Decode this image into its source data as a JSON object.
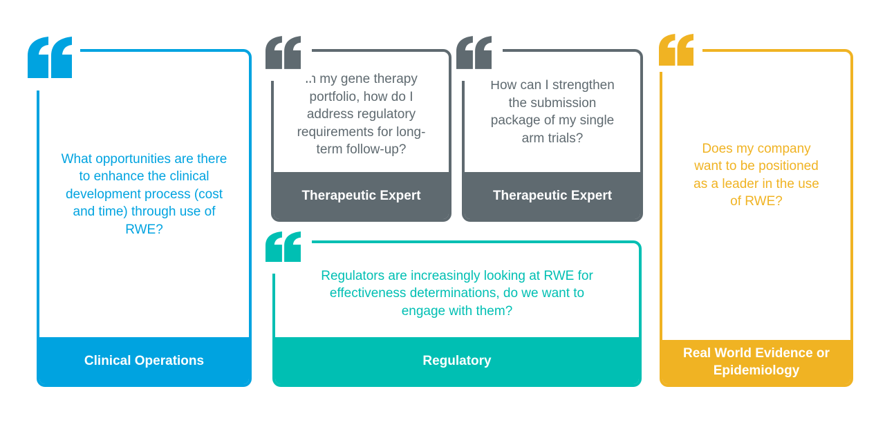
{
  "colors": {
    "clinical": "#00a3e0",
    "expert": "#5f6a70",
    "regulatory": "#00bfb3",
    "rwe": "#f0b323"
  },
  "cards": [
    {
      "question": "What opportunities are there to enhance the clinical development process (cost and time) through use of RWE?",
      "role": "Clinical  Operations",
      "icon": "quote-icon"
    },
    {
      "question": "In my gene therapy portfolio, how do I address regulatory requirements for long-term follow-up?",
      "role": "Therapeutic Expert",
      "icon": "quote-icon"
    },
    {
      "question": "How can I strengthen the submission package of my single arm trials?",
      "role": "Therapeutic Expert",
      "icon": "quote-icon"
    },
    {
      "question": "Regulators are increasingly looking at RWE for effectiveness determinations, do we want to engage with them?",
      "role": "Regulatory",
      "icon": "quote-icon"
    },
    {
      "question": "Does my company want to be positioned as a leader in the use of RWE?",
      "role": "Real World Evidence or Epidemiology",
      "icon": "quote-icon"
    }
  ]
}
